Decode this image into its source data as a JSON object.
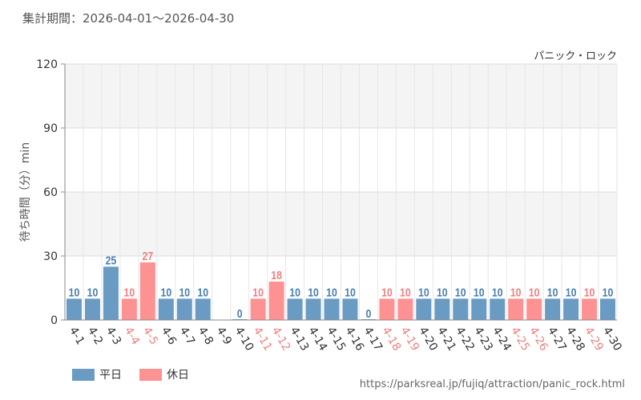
{
  "header": {
    "period": "集計期間：2026-04-01～2026-04-30"
  },
  "footer": {
    "url": "https://parksreal.jp/fujiq/attraction/panic_rock.html"
  },
  "legend": {
    "weekday_label": "平日",
    "holiday_label": "休日"
  },
  "colors": {
    "weekday": "#6a9bc3",
    "holiday": "#fd9293",
    "weekday_text": "#4a7eb0",
    "holiday_text": "#f07f80"
  },
  "chart_data": {
    "type": "bar",
    "series_name": "パニック・ロック",
    "ylabel": "待ち時間（分）min",
    "ylim": [
      0,
      120
    ],
    "yticks": [
      0,
      30,
      60,
      90,
      120
    ],
    "categories": [
      "4-1",
      "4-2",
      "4-3",
      "4-4",
      "4-5",
      "4-6",
      "4-7",
      "4-8",
      "4-9",
      "4-10",
      "4-11",
      "4-12",
      "4-13",
      "4-14",
      "4-15",
      "4-16",
      "4-17",
      "4-18",
      "4-19",
      "4-20",
      "4-21",
      "4-22",
      "4-23",
      "4-24",
      "4-25",
      "4-26",
      "4-27",
      "4-28",
      "4-29",
      "4-30"
    ],
    "values": [
      10,
      10,
      25,
      10,
      27,
      10,
      10,
      10,
      null,
      0,
      10,
      18,
      10,
      10,
      10,
      10,
      0,
      10,
      10,
      10,
      10,
      10,
      10,
      10,
      10,
      10,
      10,
      10,
      10,
      10
    ],
    "day_types": [
      "weekday",
      "weekday",
      "weekday",
      "holiday",
      "holiday",
      "weekday",
      "weekday",
      "weekday",
      "weekday",
      "weekday",
      "holiday",
      "holiday",
      "weekday",
      "weekday",
      "weekday",
      "weekday",
      "weekday",
      "holiday",
      "holiday",
      "weekday",
      "weekday",
      "weekday",
      "weekday",
      "weekday",
      "holiday",
      "holiday",
      "weekday",
      "weekday",
      "holiday",
      "weekday"
    ],
    "value_labels": [
      "10",
      "10",
      "25",
      "10",
      "27",
      "10",
      "10",
      "10",
      "",
      "0",
      "10",
      "18",
      "10",
      "10",
      "10",
      "10",
      "0",
      "10",
      "10",
      "10",
      "10",
      "10",
      "10",
      "10",
      "10",
      "10",
      "10",
      "10",
      "10",
      "10"
    ]
  }
}
